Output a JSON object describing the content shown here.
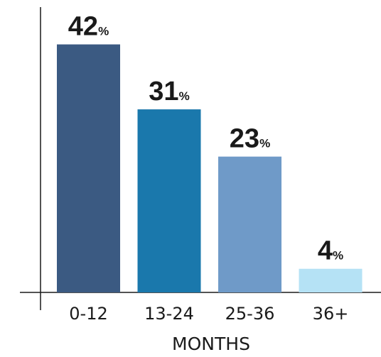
{
  "chart_data": {
    "type": "bar",
    "categories": [
      "0-12",
      "13-24",
      "25-36",
      "36+"
    ],
    "values": [
      42,
      31,
      23,
      4
    ],
    "value_suffix": "%",
    "xlabel": "MONTHS",
    "ylabel": "",
    "ylim": [
      0,
      45
    ],
    "grid": false,
    "legend": "none",
    "colors": [
      "#3b5a82",
      "#1a78ac",
      "#6f9ac8",
      "#b5e2f5"
    ]
  }
}
